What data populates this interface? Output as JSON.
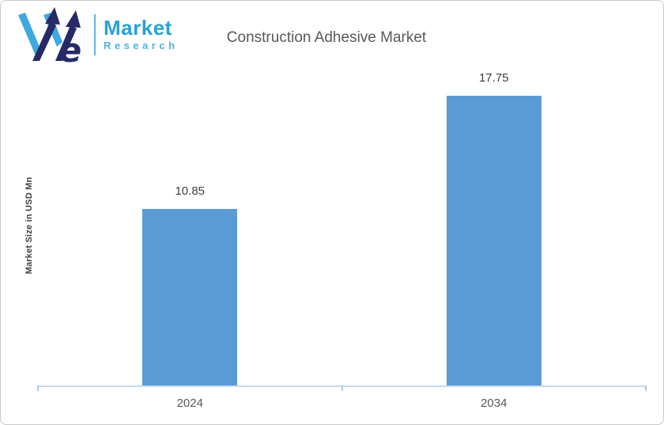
{
  "logo": {
    "brand_top": "Market",
    "brand_bottom": "Research",
    "mark": "we-arrows-logo",
    "colors": {
      "brand_top": "#2aa1d8",
      "brand_bottom": "#52b2e3",
      "navy": "#272a66",
      "light_blue": "#3fa8df",
      "divider": "#5fb8e6"
    }
  },
  "chart_data": {
    "type": "bar",
    "title": "Construction Adhesive Market",
    "categories": [
      "2024",
      "2034"
    ],
    "values": [
      10.85,
      17.75
    ],
    "data_labels": [
      "10.85",
      "17.75"
    ],
    "xlabel": "",
    "ylabel": "Market Size in USD Mn",
    "ylim": [
      0,
      20
    ],
    "grid": "off",
    "legend": "none",
    "bar_color": "#5b9bd5",
    "axis_color": "#c5d9ed",
    "label_color": "#404040",
    "tick_label_color": "#595959",
    "title_color": "#595959"
  }
}
